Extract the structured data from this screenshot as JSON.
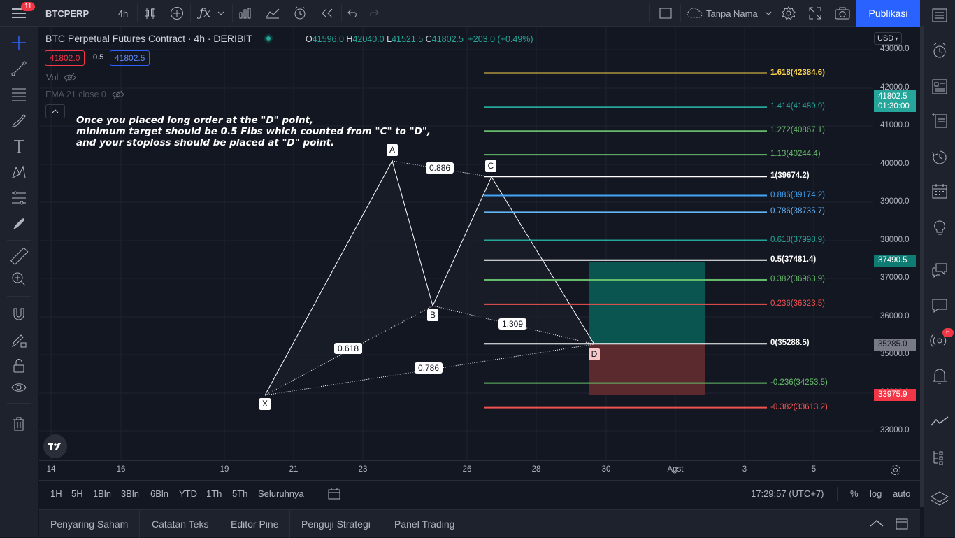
{
  "topbar": {
    "notification_count": "11",
    "symbol": "BTCPERP",
    "interval": "4h",
    "layout_name": "Tanpa Nama",
    "publish_label": "Publikasi"
  },
  "legend": {
    "title": "BTC Perpetual Futures Contract · 4h · DERIBIT",
    "o_label": "O",
    "o_value": "41596.0",
    "h_label": "H",
    "h_value": "42040.0",
    "l_label": "L",
    "l_value": "41521.5",
    "c_label": "C",
    "c_value": "41802.5",
    "change": "+203.0 (+0.49%)",
    "bid": "41802.0",
    "spread": "0.5",
    "ask": "41802.5",
    "vol_label": "Vol",
    "ema_label": "EMA 21 close 0"
  },
  "note": {
    "line1": "Once you placed long order at the \"D\" point,",
    "line2": "minimum target should be 0.5 Fibs which counted from \"C\" to \"D\",",
    "line3": "and your stoploss should be placed at \"D\" point."
  },
  "pattern": {
    "points": {
      "x": "X",
      "a": "A",
      "b": "B",
      "c": "C",
      "d": "D"
    },
    "ratios": {
      "xb": "0.618",
      "ac": "0.886",
      "bd": "1.309",
      "xd": "0.786"
    }
  },
  "fib_levels": [
    {
      "label": "1.618(42384.6)",
      "color": "#f7d14a"
    },
    {
      "label": "1.414(41489.9)",
      "color": "#26a69a"
    },
    {
      "label": "1.272(40867.1)",
      "color": "#66bb6a"
    },
    {
      "label": "1.13(40244.4)",
      "color": "#66bb6a"
    },
    {
      "label": "1(39674.2)",
      "color": "#ffffff"
    },
    {
      "label": "0.886(39174.2)",
      "color": "#42a5f5"
    },
    {
      "label": "0.786(38735.7)",
      "color": "#64b5f6"
    },
    {
      "label": "0.618(37998.9)",
      "color": "#26a69a"
    },
    {
      "label": "0.5(37481.4)",
      "color": "#ffffff"
    },
    {
      "label": "0.382(36963.9)",
      "color": "#66bb6a"
    },
    {
      "label": "0.236(36323.5)",
      "color": "#ef5350"
    },
    {
      "label": "0(35288.5)",
      "color": "#ffffff"
    },
    {
      "label": "-0.236(34253.5)",
      "color": "#66bb6a"
    },
    {
      "label": "-0.382(33613.2)",
      "color": "#ef5350"
    }
  ],
  "price_axis": {
    "currency": "USD",
    "ticks": [
      "43000.0",
      "42000.0",
      "41000.0",
      "40000.0",
      "39000.0",
      "38000.0",
      "37000.0",
      "36000.0",
      "35000.0",
      "34000.0",
      "33000.0"
    ],
    "last_price": "41802.5",
    "countdown": "01:30:00",
    "target_price": "37490.5",
    "entry_price": "35285.0",
    "stop_price": "33975.9"
  },
  "time_axis": {
    "ticks": [
      "14",
      "16",
      "19",
      "21",
      "23",
      "26",
      "28",
      "30",
      "Agst",
      "3",
      "5"
    ]
  },
  "range_bar": {
    "ranges": [
      "1H",
      "5H",
      "1Bln",
      "3Bln",
      "6Bln",
      "YTD",
      "1Th",
      "5Th",
      "Seluruhnya"
    ],
    "clock": "17:29:57 (UTC+7)",
    "percent": "%",
    "log": "log",
    "auto": "auto"
  },
  "bottom_tabs": [
    "Penyaring Saham",
    "Catatan Teks",
    "Editor Pine",
    "Penguji Strategi",
    "Panel Trading"
  ],
  "rightbar": {
    "alerts_badge": "6"
  },
  "colors": {
    "background": "#131722",
    "panel": "#1e222d",
    "accent": "#2962ff",
    "target_zone": "#0c5a55",
    "stop_zone": "#5a2a2d"
  }
}
